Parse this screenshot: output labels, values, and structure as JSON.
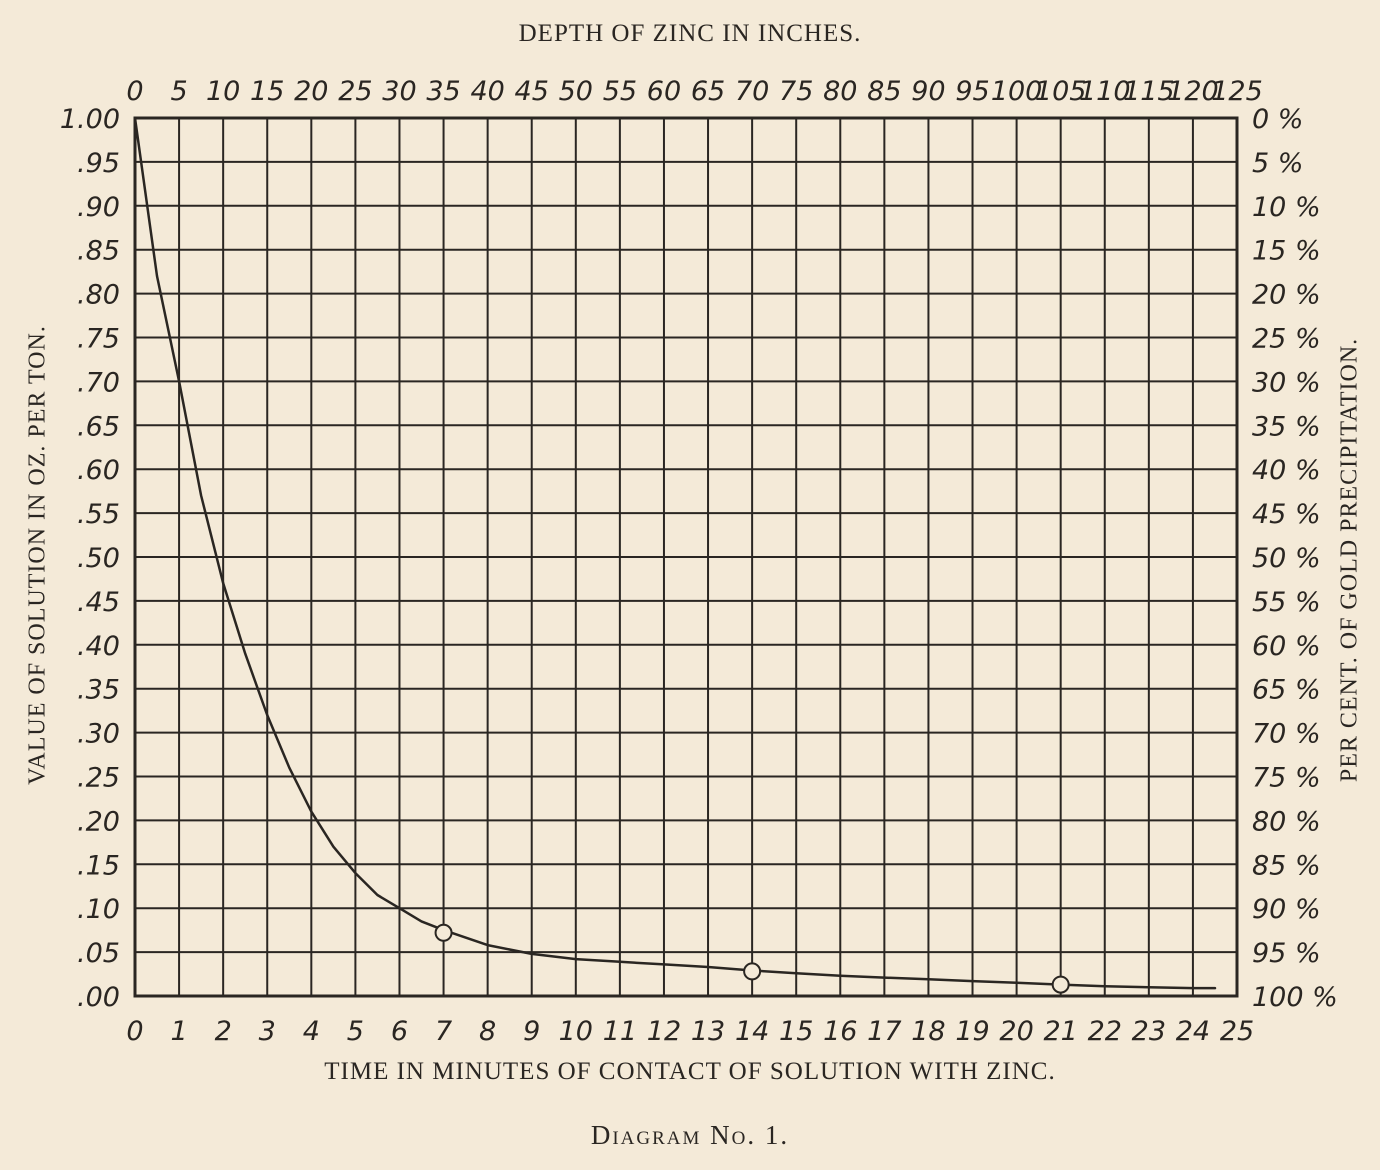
{
  "chart_data": {
    "type": "line",
    "caption": "Diagram No. 1.",
    "x_bottom": {
      "label": "TIME IN MINUTES OF CONTACT OF SOLUTION WITH ZINC.",
      "range": [
        0,
        25
      ],
      "ticks": [
        "0",
        "1",
        "2",
        "3",
        "4",
        "5",
        "6",
        "7",
        "8",
        "9",
        "10",
        "11",
        "12",
        "13",
        "14",
        "15",
        "16",
        "17",
        "18",
        "19",
        "20",
        "21",
        "22",
        "23",
        "24",
        "25"
      ]
    },
    "x_top": {
      "label": "DEPTH OF ZINC IN INCHES.",
      "range": [
        0,
        125
      ],
      "ticks": [
        "0",
        "5",
        "10",
        "15",
        "20",
        "25",
        "30",
        "35",
        "40",
        "45",
        "50",
        "55",
        "60",
        "65",
        "70",
        "75",
        "80",
        "85",
        "90",
        "95",
        "100",
        "105",
        "110",
        "115",
        "120",
        "125"
      ]
    },
    "y_left": {
      "label": "VALUE OF SOLUTION IN OZ. PER TON.",
      "range": [
        0,
        1.0
      ],
      "ticks": [
        "1.00",
        ".95",
        ".90",
        ".85",
        ".80",
        ".75",
        ".70",
        ".65",
        ".60",
        ".55",
        ".50",
        ".45",
        ".40",
        ".35",
        ".30",
        ".25",
        ".20",
        ".15",
        ".10",
        ".05",
        ".00"
      ]
    },
    "y_right": {
      "label": "PER CENT. OF GOLD PRECIPITATION.",
      "range": [
        0,
        100
      ],
      "ticks": [
        "0 %",
        "5 %",
        "10 %",
        "15 %",
        "20 %",
        "25 %",
        "30 %",
        "35 %",
        "40 %",
        "45 %",
        "50 %",
        "55 %",
        "60 %",
        "65 %",
        "70 %",
        "75 %",
        "80 %",
        "85 %",
        "90 %",
        "95 %",
        "100 %"
      ]
    },
    "grid": true,
    "series": [
      {
        "color": "#2a2622",
        "x": [
          0,
          0.5,
          1,
          1.5,
          2,
          2.5,
          3,
          3.5,
          4,
          4.5,
          5,
          5.5,
          6,
          6.5,
          7,
          8,
          9,
          10,
          11,
          12,
          13,
          14,
          15,
          16,
          17,
          18,
          19,
          20,
          21,
          22,
          23,
          24,
          24.5
        ],
        "y": [
          1.0,
          0.82,
          0.7,
          0.57,
          0.47,
          0.39,
          0.32,
          0.26,
          0.21,
          0.17,
          0.14,
          0.115,
          0.1,
          0.085,
          0.075,
          0.058,
          0.048,
          0.042,
          0.039,
          0.036,
          0.033,
          0.029,
          0.026,
          0.023,
          0.021,
          0.019,
          0.017,
          0.015,
          0.013,
          0.011,
          0.01,
          0.009,
          0.009
        ]
      }
    ],
    "markers": [
      {
        "x": 7,
        "y": 0.072
      },
      {
        "x": 14,
        "y": 0.028
      },
      {
        "x": 21,
        "y": 0.013
      }
    ]
  }
}
